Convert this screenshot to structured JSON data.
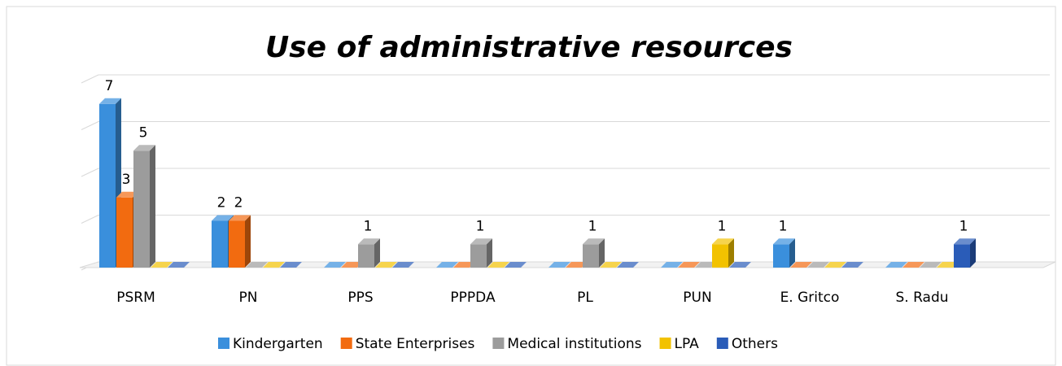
{
  "chart_data": {
    "type": "bar3d",
    "title": "Use of administrative resources",
    "categories": [
      "PSRM",
      "PN",
      "PPS",
      "PPPDA",
      "PL",
      "PUN",
      "E. Gritco",
      "S. Radu"
    ],
    "series": [
      {
        "name": "Kindergarten",
        "color": "#3a8fdc",
        "values": [
          7,
          2,
          0,
          0,
          0,
          0,
          1,
          0
        ]
      },
      {
        "name": "State Enterprises",
        "color": "#f26b10",
        "values": [
          3,
          2,
          0,
          0,
          0,
          0,
          0,
          0
        ]
      },
      {
        "name": "Medical institutions",
        "color": "#9c9c9c",
        "values": [
          5,
          0,
          1,
          1,
          1,
          0,
          0,
          0
        ]
      },
      {
        "name": "LPA",
        "color": "#f2c200",
        "values": [
          0,
          0,
          0,
          0,
          0,
          1,
          0,
          0
        ]
      },
      {
        "name": "Others",
        "color": "#2a5cb8",
        "values": [
          0,
          0,
          0,
          0,
          0,
          0,
          0,
          1
        ]
      }
    ],
    "ylim": [
      0,
      8
    ],
    "yticks": [
      0,
      2,
      4,
      6,
      8
    ],
    "grid": true,
    "legend": "bottom"
  }
}
